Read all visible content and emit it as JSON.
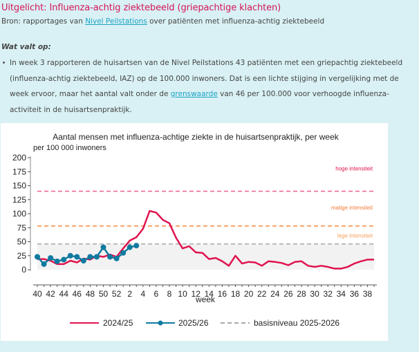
{
  "header": {
    "title": "Uitgelicht: Influenza-achtig ziektebeeld (griepachtige klachten)",
    "source_prefix": "Bron: rapportages van ",
    "source_link": "Nivel Peilstations",
    "source_suffix": " over patiënten met influenza-achtig ziektebeeld"
  },
  "section": {
    "subhead": "Wat valt op:",
    "bullet_part1": "In week 3 rapporteren de huisartsen van de Nivel Peilstations 43 patiënten met een griepachtig ziektebeeld (influenza-achtig ziektebeeld, IAZ) op de 100.000 inwoners. Dat is een lichte stijging in vergelijking met de week ervoor, maar het aantal valt onder de ",
    "bullet_link": "grenswaarde",
    "bullet_part2": " van 46 per 100.000 voor verhoogde influenza-activiteit in de huisartsenpraktijk."
  },
  "chart_data": {
    "type": "line",
    "title": "Aantal mensen met influenza-achtige ziekte in de huisartsenpraktijk, per week",
    "ylabel": "per 100 000 inwoners",
    "xlabel": "week",
    "ylim": [
      0,
      200
    ],
    "yticks": [
      0,
      25,
      50,
      75,
      100,
      125,
      150,
      175,
      200
    ],
    "x": [
      40,
      41,
      42,
      43,
      44,
      45,
      46,
      47,
      48,
      49,
      50,
      51,
      52,
      1,
      2,
      3,
      4,
      5,
      6,
      7,
      8,
      9,
      10,
      11,
      12,
      13,
      14,
      15,
      16,
      17,
      18,
      19,
      20,
      21,
      22,
      23,
      24,
      25,
      26,
      27,
      28,
      29,
      30,
      31,
      32,
      33,
      34,
      35,
      36,
      37,
      38,
      39
    ],
    "xtick_labels": [
      "40",
      "42",
      "44",
      "46",
      "48",
      "50",
      "52",
      "2",
      "4",
      "6",
      "8",
      "10",
      "12",
      "14",
      "16",
      "18",
      "20",
      "22",
      "24",
      "26",
      "28",
      "30",
      "32",
      "34",
      "36",
      "38"
    ],
    "grid": false,
    "legend_position": "bottom",
    "series": [
      {
        "name": "2024/25",
        "color": "#e0134f",
        "markers": false,
        "values": [
          19,
          19,
          16,
          10,
          10,
          16,
          13,
          20,
          18,
          25,
          23,
          27,
          23,
          38,
          52,
          58,
          73,
          105,
          102,
          89,
          83,
          57,
          38,
          42,
          31,
          30,
          19,
          21,
          15,
          7,
          25,
          11,
          14,
          13,
          7,
          15,
          14,
          12,
          8,
          14,
          15,
          7,
          5,
          7,
          5,
          2,
          2,
          5,
          11,
          15,
          18,
          18
        ]
      },
      {
        "name": "2025/26",
        "color": "#0e7aa0",
        "markers": true,
        "values": [
          23,
          10,
          21,
          15,
          18,
          25,
          23,
          16,
          23,
          23,
          40,
          23,
          20,
          30,
          40,
          43
        ]
      }
    ],
    "reference_lines": [
      {
        "name": "basisniveau 2025-2026",
        "value": 46,
        "color": "#a8a8a8",
        "label": "lage intensiteit",
        "label_color": "#f5a05a",
        "shaded_below": true
      },
      {
        "name": "matige intensiteit",
        "value": 78,
        "color": "#f7924a",
        "label": "matige intensiteit",
        "label_color": "#f07c3a"
      },
      {
        "name": "hoge intensiteit",
        "value": 140,
        "color": "#ee6b92",
        "label": "hoge intensiteit",
        "label_color": "#e0134f"
      }
    ]
  }
}
